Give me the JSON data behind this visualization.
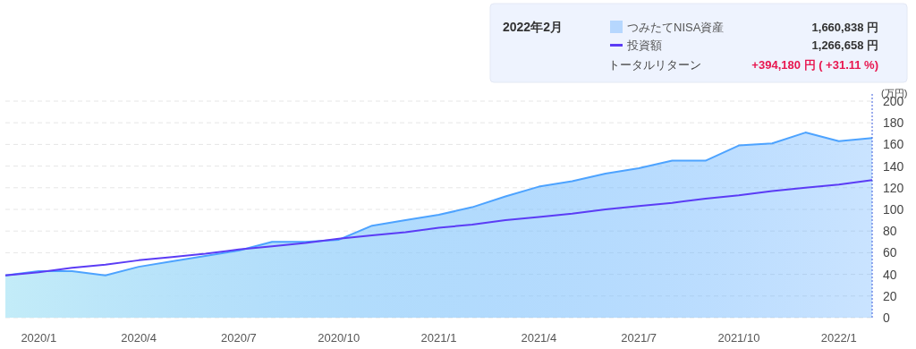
{
  "chart_data": {
    "type": "area",
    "ylabel": "(万円)",
    "x": [
      "2019-12",
      "2020-01",
      "2020-02",
      "2020-03",
      "2020-04",
      "2020-05",
      "2020-06",
      "2020-07",
      "2020-08",
      "2020-09",
      "2020-10",
      "2020-11",
      "2020-12",
      "2021-01",
      "2021-02",
      "2021-03",
      "2021-04",
      "2021-05",
      "2021-06",
      "2021-07",
      "2021-08",
      "2021-09",
      "2021-10",
      "2021-11",
      "2021-12",
      "2022-01",
      "2022-02"
    ],
    "series": [
      {
        "name": "つみたてNISA資産",
        "type": "area",
        "color": "#4da3ff",
        "values": [
          39,
          43,
          43,
          39,
          47,
          52,
          57,
          62,
          70,
          70,
          72,
          85,
          90,
          95,
          102,
          112,
          121,
          126,
          133,
          138,
          145,
          145,
          159,
          161,
          171,
          163,
          166
        ]
      },
      {
        "name": "投資額",
        "type": "line",
        "color": "#5b3cf5",
        "values": [
          39,
          42,
          46,
          49,
          53,
          56,
          59,
          63,
          66,
          69,
          73,
          76,
          79,
          83,
          86,
          90,
          93,
          96,
          100,
          103,
          106,
          110,
          113,
          117,
          120,
          123,
          127
        ]
      }
    ],
    "xlim": [
      "2019-12",
      "2022-02"
    ],
    "xticks": [
      {
        "value": "2020-01",
        "label": "2020/1"
      },
      {
        "value": "2020-04",
        "label": "2020/4"
      },
      {
        "value": "2020-07",
        "label": "2020/7"
      },
      {
        "value": "2020-10",
        "label": "2020/10"
      },
      {
        "value": "2021-01",
        "label": "2021/1"
      },
      {
        "value": "2021-04",
        "label": "2021/4"
      },
      {
        "value": "2021-07",
        "label": "2021/7"
      },
      {
        "value": "2021-10",
        "label": "2021/10"
      },
      {
        "value": "2022-01",
        "label": "2022/1"
      }
    ],
    "ylim": [
      0,
      200
    ],
    "yticks": [
      0,
      20,
      40,
      60,
      80,
      100,
      120,
      140,
      160,
      180,
      200
    ],
    "grid": "y",
    "legend": "top right",
    "ref_lines": [
      {
        "axis": "x",
        "value": "2022-02",
        "color": "#3b5bdb",
        "line_style": "dotted"
      }
    ],
    "annotations": [
      "2022年2月",
      "1,660,838 円",
      "1,266,658 円",
      "トータルリターン",
      "+394,180 円 ( +31.11 %)"
    ]
  }
}
